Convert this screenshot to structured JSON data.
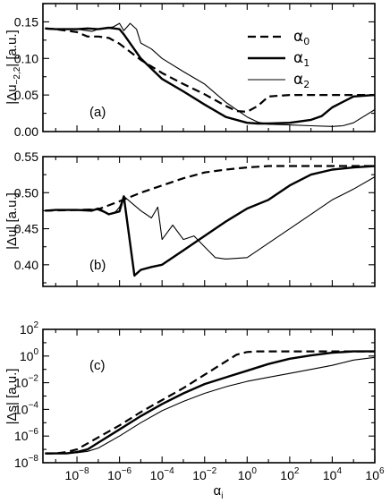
{
  "chart_data": [
    {
      "type": "line",
      "panel_tag": "(a)",
      "ylabel": "|Δu",
      "ylabel_sub": "−2,2",
      "ylabel_tail": "| [a.u.]",
      "xscale": "log",
      "ylim": [
        0,
        0.175
      ],
      "yticks": [
        {
          "v": 0.0,
          "label": "0.00"
        },
        {
          "v": 0.05,
          "label": "0.05"
        },
        {
          "v": 0.1,
          "label": "0.10"
        },
        {
          "v": 0.15,
          "label": "0.15"
        }
      ],
      "x_tick_labels_visible": false,
      "legend": {
        "placement": "top-right",
        "entries": [
          {
            "symbol": "α",
            "sub": "0",
            "series": "alpha0"
          },
          {
            "symbol": "α",
            "sub": "1",
            "series": "alpha1"
          },
          {
            "symbol": "α",
            "sub": "2",
            "series": "alpha2"
          }
        ]
      },
      "series": [
        {
          "key": "alpha0",
          "style": "dashed",
          "width": 2.2,
          "x": [
            -9.5,
            -9,
            -8,
            -7.5,
            -7,
            -6.5,
            -6,
            -5,
            -4,
            -3,
            -2,
            -1,
            -0.5,
            0,
            0.5,
            1,
            2,
            3,
            4,
            5,
            6
          ],
          "values": [
            0.141,
            0.14,
            0.136,
            0.13,
            0.13,
            0.128,
            0.12,
            0.098,
            0.08,
            0.065,
            0.051,
            0.035,
            0.028,
            0.027,
            0.035,
            0.048,
            0.05,
            0.05,
            0.05,
            0.05,
            0.05
          ]
        },
        {
          "key": "alpha1",
          "style": "solid",
          "width": 2.4,
          "x": [
            -9.5,
            -9,
            -8,
            -7.5,
            -7,
            -6.5,
            -6,
            -5.8,
            -5,
            -4,
            -3,
            -2,
            -1,
            0,
            0.5,
            1,
            2,
            3,
            3.5,
            4,
            5,
            6
          ],
          "values": [
            0.141,
            0.14,
            0.14,
            0.141,
            0.14,
            0.142,
            0.14,
            0.133,
            0.1,
            0.072,
            0.055,
            0.037,
            0.02,
            0.012,
            0.011,
            0.011,
            0.012,
            0.016,
            0.021,
            0.033,
            0.048,
            0.05
          ]
        },
        {
          "key": "alpha2",
          "style": "solid",
          "width": 1.1,
          "x": [
            -9.5,
            -9,
            -8,
            -7.3,
            -7,
            -6.3,
            -6,
            -5.8,
            -5.5,
            -5.2,
            -5,
            -4.5,
            -4,
            -3,
            -2,
            -1,
            0,
            0.5,
            1,
            2,
            3,
            4,
            4.5,
            5,
            6
          ],
          "values": [
            0.141,
            0.14,
            0.14,
            0.137,
            0.14,
            0.143,
            0.148,
            0.138,
            0.148,
            0.14,
            0.121,
            0.113,
            0.1,
            0.082,
            0.065,
            0.04,
            0.02,
            0.013,
            0.01,
            0.009,
            0.008,
            0.007,
            0.008,
            0.012,
            0.03
          ]
        }
      ]
    },
    {
      "type": "line",
      "panel_tag": "(b)",
      "ylabel": "|Δu| [a.u.]",
      "xscale": "log",
      "ylim": [
        0.37,
        0.55
      ],
      "yticks": [
        {
          "v": 0.4,
          "label": "0.40"
        },
        {
          "v": 0.45,
          "label": "0.45"
        },
        {
          "v": 0.5,
          "label": "0.50"
        },
        {
          "v": 0.55,
          "label": "0.55"
        }
      ],
      "x_tick_labels_visible": false,
      "series": [
        {
          "key": "alpha0",
          "style": "dashed",
          "width": 2.2,
          "x": [
            -9.5,
            -8,
            -7,
            -6,
            -5,
            -4,
            -3,
            -2,
            -1,
            0,
            1,
            2,
            3,
            4,
            5,
            6
          ],
          "values": [
            0.475,
            0.476,
            0.477,
            0.488,
            0.5,
            0.51,
            0.52,
            0.528,
            0.532,
            0.535,
            0.537,
            0.537,
            0.537,
            0.537,
            0.537,
            0.537
          ]
        },
        {
          "key": "alpha1",
          "style": "solid",
          "width": 2.4,
          "x": [
            -9.5,
            -9,
            -8,
            -7.3,
            -7,
            -6.5,
            -6,
            -5.8,
            -5.3,
            -5,
            -4.5,
            -4,
            -3,
            -2,
            -1,
            0,
            1,
            2,
            3,
            4,
            5,
            6
          ],
          "values": [
            0.475,
            0.476,
            0.476,
            0.475,
            0.478,
            0.47,
            0.474,
            0.495,
            0.385,
            0.393,
            0.397,
            0.4,
            0.42,
            0.44,
            0.46,
            0.478,
            0.49,
            0.51,
            0.525,
            0.532,
            0.535,
            0.537
          ]
        },
        {
          "key": "alpha2",
          "style": "solid",
          "width": 1.1,
          "x": [
            -9.5,
            -9,
            -8,
            -7.3,
            -7,
            -6.5,
            -6.2,
            -6,
            -5.8,
            -5,
            -4.5,
            -4.2,
            -4,
            -3.5,
            -3,
            -2.5,
            -2,
            -1.5,
            -1,
            0,
            1,
            2,
            3,
            4,
            5,
            6
          ],
          "values": [
            0.475,
            0.476,
            0.476,
            0.477,
            0.476,
            0.47,
            0.473,
            0.48,
            0.495,
            0.475,
            0.465,
            0.48,
            0.435,
            0.455,
            0.435,
            0.44,
            0.425,
            0.41,
            0.408,
            0.41,
            0.43,
            0.45,
            0.47,
            0.49,
            0.505,
            0.522
          ]
        }
      ]
    },
    {
      "type": "line",
      "panel_tag": "(c)",
      "ylabel": "|Δs| [a.u.]",
      "xscale": "log",
      "yscale": "log",
      "ylim_exp": [
        -8,
        2
      ],
      "yticks": [
        {
          "exp": -8,
          "base": "10",
          "sup": "−8"
        },
        {
          "exp": -6,
          "base": "10",
          "sup": "−6"
        },
        {
          "exp": -4,
          "base": "10",
          "sup": "−4"
        },
        {
          "exp": -2,
          "base": "10",
          "sup": "−2"
        },
        {
          "exp": 0,
          "base": "10",
          "sup": "0"
        },
        {
          "exp": 2,
          "base": "10",
          "sup": "2"
        }
      ],
      "xlabel": "α",
      "xlabel_sub": "i",
      "xlim_exp": [
        -9.6,
        6
      ],
      "xticks": [
        {
          "exp": -8,
          "base": "10",
          "sup": "−8"
        },
        {
          "exp": -6,
          "base": "10",
          "sup": "−6"
        },
        {
          "exp": -4,
          "base": "10",
          "sup": "−4"
        },
        {
          "exp": -2,
          "base": "10",
          "sup": "−2"
        },
        {
          "exp": 0,
          "base": "10",
          "sup": "0"
        },
        {
          "exp": 2,
          "base": "10",
          "sup": "2"
        },
        {
          "exp": 4,
          "base": "10",
          "sup": "4"
        },
        {
          "exp": 6,
          "base": "10",
          "sup": "6"
        }
      ],
      "series": [
        {
          "key": "alpha0",
          "style": "dashed",
          "width": 2.2,
          "x": [
            -9.5,
            -9,
            -8.5,
            -8,
            -7,
            -6,
            -5,
            -4,
            -3,
            -2,
            -1,
            -0.5,
            0,
            0.5,
            1,
            2,
            3,
            4,
            5,
            6
          ],
          "values_exp": [
            -7.3,
            -7.3,
            -7.2,
            -7.0,
            -6.1,
            -5.2,
            -4.2,
            -3.3,
            -2.4,
            -1.4,
            -0.4,
            0.1,
            0.3,
            0.35,
            0.35,
            0.35,
            0.35,
            0.35,
            0.35,
            0.35
          ]
        },
        {
          "key": "alpha1",
          "style": "solid",
          "width": 2.4,
          "x": [
            -9.5,
            -9,
            -8.5,
            -8,
            -7.5,
            -7,
            -6,
            -5,
            -4,
            -3,
            -2,
            -1,
            0,
            1,
            2,
            3,
            4,
            5,
            6
          ],
          "values_exp": [
            -7.3,
            -7.3,
            -7.3,
            -7.2,
            -7.0,
            -6.5,
            -5.5,
            -4.5,
            -3.6,
            -2.8,
            -2.1,
            -1.6,
            -1.1,
            -0.6,
            -0.2,
            0.05,
            0.25,
            0.35,
            0.35
          ]
        },
        {
          "key": "alpha2",
          "style": "solid",
          "width": 1.1,
          "x": [
            -9.5,
            -9,
            -8.5,
            -8,
            -7.5,
            -7,
            -6,
            -5,
            -4,
            -3,
            -2,
            -1,
            0,
            1,
            2,
            3,
            4,
            5,
            6
          ],
          "values_exp": [
            -7.3,
            -7.3,
            -7.3,
            -7.25,
            -7.15,
            -6.9,
            -6.0,
            -5.0,
            -4.1,
            -3.4,
            -2.8,
            -2.3,
            -1.9,
            -1.6,
            -1.3,
            -1.0,
            -0.7,
            -0.3,
            -0.1
          ]
        }
      ]
    }
  ]
}
